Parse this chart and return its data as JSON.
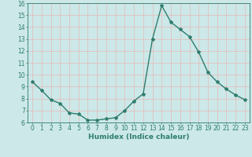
{
  "x": [
    0,
    1,
    2,
    3,
    4,
    5,
    6,
    7,
    8,
    9,
    10,
    11,
    12,
    13,
    14,
    15,
    16,
    17,
    18,
    19,
    20,
    21,
    22,
    23
  ],
  "y": [
    9.4,
    8.7,
    7.9,
    7.6,
    6.8,
    6.7,
    6.2,
    6.2,
    6.3,
    6.4,
    7.0,
    7.8,
    8.4,
    13.0,
    15.8,
    14.4,
    13.8,
    13.2,
    11.9,
    10.2,
    9.4,
    8.8,
    8.3,
    7.9
  ],
  "line_color": "#2e7d6e",
  "marker": "*",
  "marker_size": 3,
  "bg_color": "#cce8e8",
  "grid_color": "#e8b8b8",
  "xlabel": "Humidex (Indice chaleur)",
  "ylim": [
    6,
    16
  ],
  "xlim": [
    -0.5,
    23.5
  ],
  "yticks": [
    6,
    7,
    8,
    9,
    10,
    11,
    12,
    13,
    14,
    15,
    16
  ],
  "xticks": [
    0,
    1,
    2,
    3,
    4,
    5,
    6,
    7,
    8,
    9,
    10,
    11,
    12,
    13,
    14,
    15,
    16,
    17,
    18,
    19,
    20,
    21,
    22,
    23
  ],
  "tick_fontsize": 5.5,
  "label_fontsize": 6.5,
  "line_width": 1.0
}
